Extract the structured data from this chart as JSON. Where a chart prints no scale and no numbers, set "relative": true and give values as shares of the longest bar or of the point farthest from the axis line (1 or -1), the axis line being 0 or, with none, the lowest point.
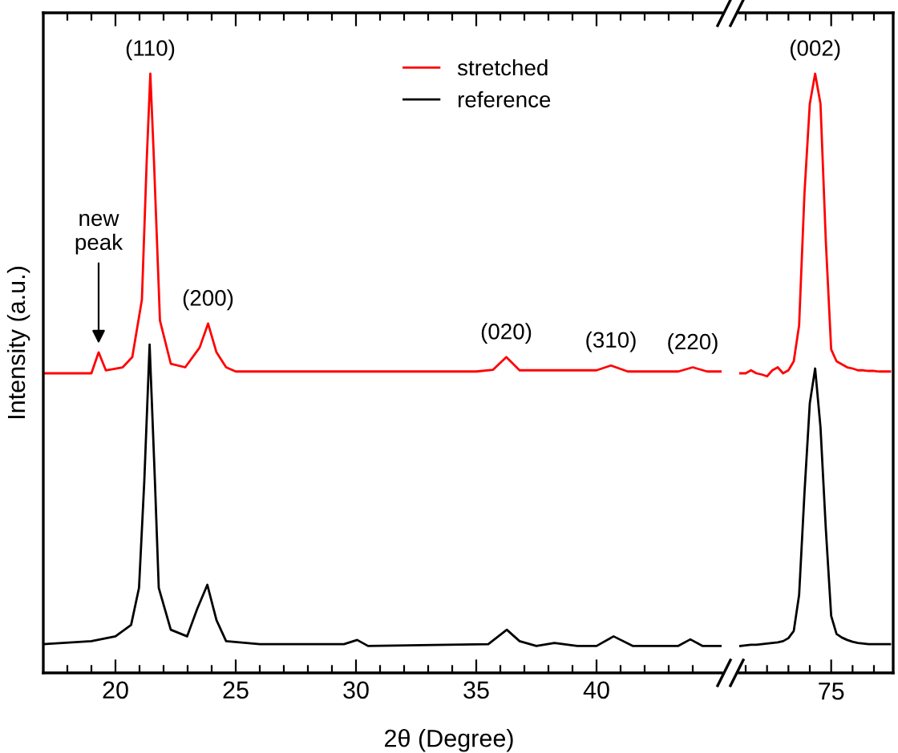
{
  "chart_data": [
    {
      "type": "line",
      "relative": true,
      "xlabel": "2θ (Degree)",
      "ylabel": "Intensity (a.u.)",
      "xlim": [
        17,
        45.2
      ],
      "xticks": [
        {
          "value": 18,
          "label": null
        },
        {
          "value": 19,
          "label": null
        },
        20,
        {
          "value": 21,
          "label": null
        },
        {
          "value": 22,
          "label": null
        },
        {
          "value": 23,
          "label": null
        },
        {
          "value": 24,
          "label": null
        },
        25,
        {
          "value": 26,
          "label": null
        },
        {
          "value": 27,
          "label": null
        },
        {
          "value": 28,
          "label": null
        },
        {
          "value": 29,
          "label": null
        },
        30,
        {
          "value": 31,
          "label": null
        },
        {
          "value": 32,
          "label": null
        },
        {
          "value": 33,
          "label": null
        },
        {
          "value": 34,
          "label": null
        },
        35,
        {
          "value": 36,
          "label": null
        },
        {
          "value": 37,
          "label": null
        },
        {
          "value": 38,
          "label": null
        },
        {
          "value": 39,
          "label": null
        },
        40,
        {
          "value": 41,
          "label": null
        },
        {
          "value": 42,
          "label": null
        },
        {
          "value": 43,
          "label": null
        },
        {
          "value": 44,
          "label": null
        }
      ],
      "tick_labels": "x",
      "grid": false,
      "legend": "top",
      "marker": "none",
      "line_style": "solid",
      "series": [
        {
          "name": "stretched",
          "color": "#ff0000",
          "x": [
            17,
            19.0,
            19.3,
            19.6,
            20.3,
            20.7,
            21.1,
            21.3,
            21.45,
            21.6,
            21.85,
            22.3,
            22.9,
            23.5,
            23.85,
            24.2,
            24.6,
            25,
            30,
            35,
            35.7,
            36.25,
            36.8,
            40.0,
            40.6,
            41.3,
            43.4,
            44.0,
            44.6,
            45.2
          ],
          "values": [
            0.5,
            0.5,
            0.535,
            0.505,
            0.51,
            0.527,
            0.623,
            0.856,
            1.0,
            0.856,
            0.588,
            0.516,
            0.51,
            0.543,
            0.583,
            0.535,
            0.51,
            0.503,
            0.503,
            0.503,
            0.506,
            0.527,
            0.505,
            0.505,
            0.513,
            0.503,
            0.503,
            0.51,
            0.503,
            0.503
          ]
        },
        {
          "name": "reference",
          "color": "#000000",
          "x": [
            17,
            19,
            20.0,
            20.65,
            20.98,
            21.2,
            21.42,
            21.64,
            21.8,
            22.3,
            22.98,
            23.4,
            23.82,
            24.2,
            24.6,
            26,
            29.5,
            30.05,
            30.5,
            35.5,
            36.27,
            36.8,
            37.5,
            38.25,
            39.2,
            40.0,
            40.71,
            41.5,
            43.4,
            43.9,
            44.4,
            45.2
          ],
          "values": [
            0.048,
            0.053,
            0.061,
            0.08,
            0.142,
            0.321,
            0.548,
            0.321,
            0.142,
            0.072,
            0.061,
            0.107,
            0.147,
            0.088,
            0.053,
            0.048,
            0.048,
            0.055,
            0.045,
            0.048,
            0.072,
            0.053,
            0.045,
            0.05,
            0.045,
            0.045,
            0.061,
            0.045,
            0.045,
            0.056,
            0.045,
            0.045
          ]
        }
      ],
      "annotations": [
        {
          "text": "(110)",
          "x": 21.45,
          "y": 1.0
        },
        {
          "text": "(200)",
          "x": 23.85,
          "y": 0.583
        },
        {
          "text": "(020)",
          "x": 36.25,
          "y": 0.527
        },
        {
          "text": "(310)",
          "x": 40.6,
          "y": 0.513
        },
        {
          "text": "(220)",
          "x": 44.0,
          "y": 0.51
        },
        {
          "text": "new\npeak",
          "x": 19.3,
          "y": 0.535
        }
      ]
    },
    {
      "type": "line",
      "relative": true,
      "categories": [
        null,
        null,
        null,
        null,
        null,
        null,
        null,
        null,
        null,
        null,
        null,
        null,
        null,
        null,
        null,
        null,
        null,
        null,
        null,
        null,
        null,
        null,
        null,
        null,
        null,
        null,
        null,
        null,
        null
      ],
      "tick_labels": false,
      "grid": false,
      "marker": "none",
      "line_style": "solid",
      "series": [
        {
          "color": "#ff0000",
          "values": [
            0.5,
            0.5,
            0.505,
            0.5,
            0.498,
            0.495,
            0.505,
            0.51,
            0.5,
            0.505,
            0.52,
            0.58,
            0.8,
            0.95,
            1.0,
            0.95,
            0.72,
            0.54,
            0.52,
            0.515,
            0.51,
            0.508,
            0.505,
            0.505,
            0.504,
            0.504,
            0.503,
            0.503,
            0.503
          ]
        },
        {
          "color": "#000000",
          "values": [
            0.045,
            0.046,
            0.047,
            0.047,
            0.048,
            0.049,
            0.05,
            0.051,
            0.053,
            0.058,
            0.07,
            0.13,
            0.3,
            0.45,
            0.508,
            0.41,
            0.24,
            0.095,
            0.065,
            0.059,
            0.055,
            0.052,
            0.05,
            0.049,
            0.048,
            0.048,
            0.048,
            0.048,
            0.048
          ]
        }
      ],
      "annotations": [
        "(002)",
        "75"
      ]
    }
  ]
}
